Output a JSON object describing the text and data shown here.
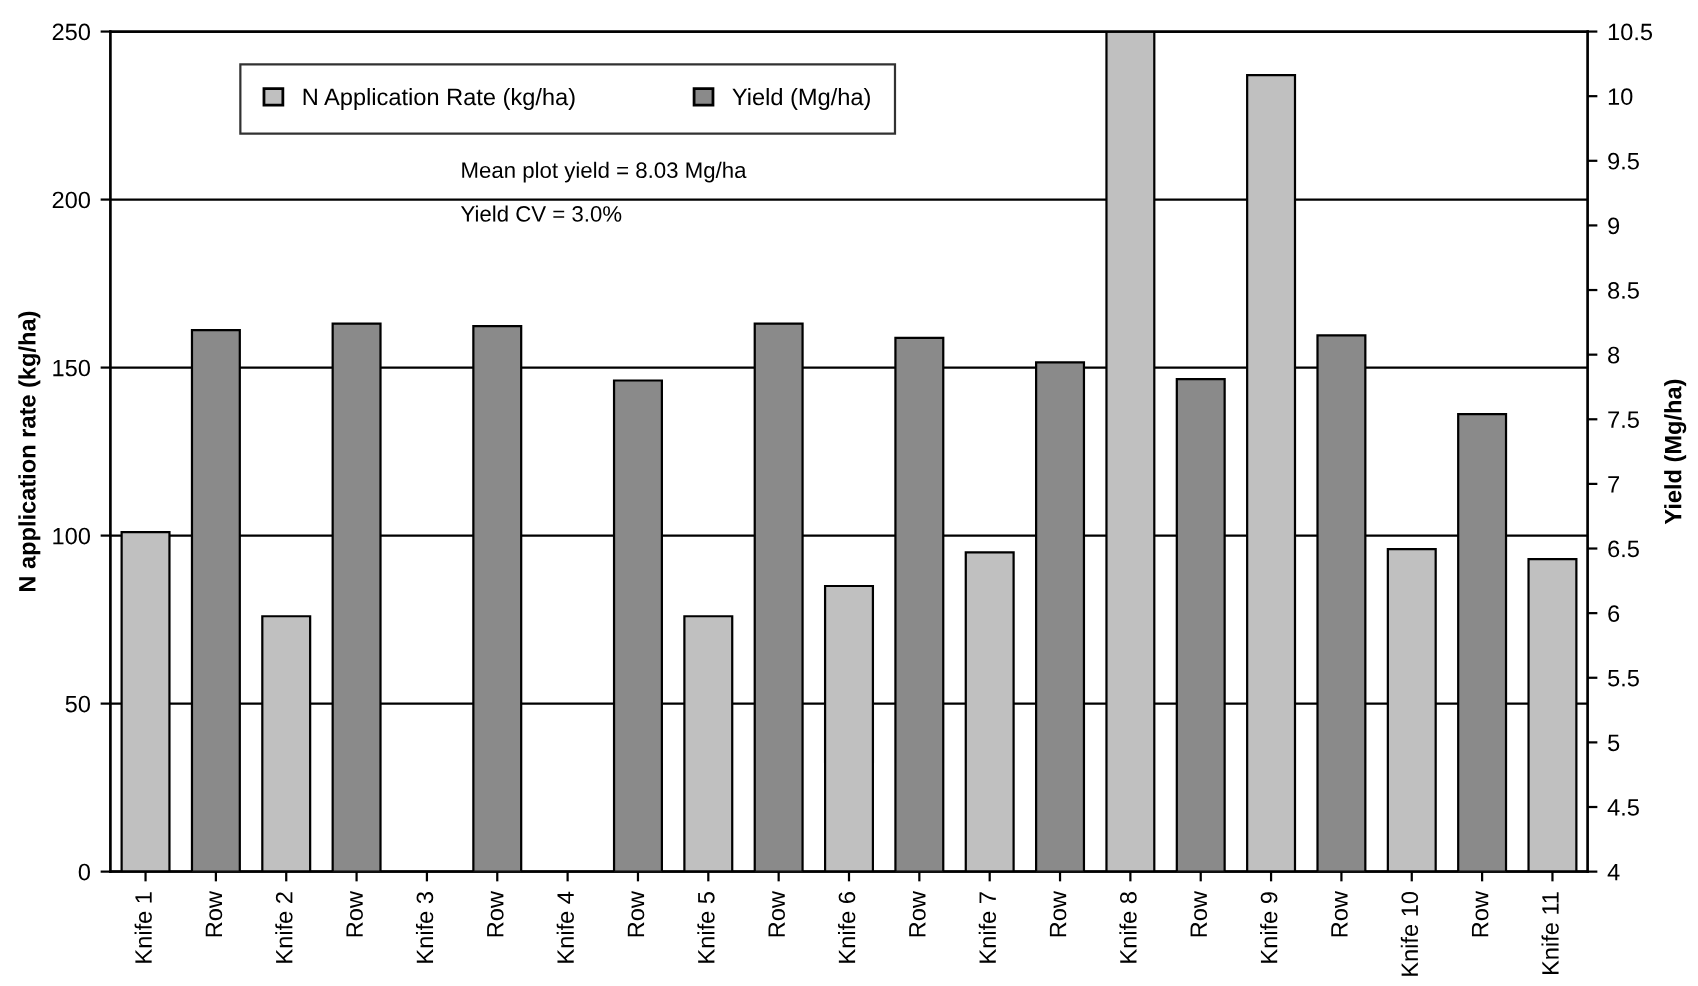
{
  "chart_data": {
    "type": "bar",
    "ylabel": "N application rate (kg/ha)",
    "y2label": "Yield (Mg/ha)",
    "categories": [
      "Knife 1",
      "Row",
      "Knife 2",
      "Row",
      "Knife 3",
      "Row",
      "Knife 4",
      "Row",
      "Knife 5",
      "Row",
      "Knife 6",
      "Row",
      "Knife 7",
      "Row",
      "Knife 8",
      "Row",
      "Knife 9",
      "Row",
      "Knife 10",
      "Row",
      "Knife 11"
    ],
    "series": [
      {
        "name": "N Application Rate (kg/ha)",
        "color": "#c0c0c0",
        "values": [
          101,
          null,
          76,
          null,
          null,
          null,
          null,
          null,
          76,
          null,
          85,
          null,
          95,
          null,
          250,
          null,
          237,
          null,
          96,
          null,
          93
        ]
      },
      {
        "name": "Yield (Mg/ha)",
        "color": "#8a8a8a",
        "axis": "y2",
        "values": [
          null,
          8.19,
          null,
          8.24,
          null,
          8.22,
          null,
          7.8,
          null,
          8.24,
          null,
          8.13,
          null,
          7.94,
          null,
          7.81,
          null,
          8.15,
          null,
          7.54,
          null
        ]
      }
    ],
    "ylim": [
      0,
      250
    ],
    "yticks": [
      0,
      50,
      100,
      150,
      200,
      250
    ],
    "y2lim": [
      4,
      10.5
    ],
    "y2ticks": [
      4,
      4.5,
      5,
      5.5,
      6,
      6.5,
      7,
      7.5,
      8,
      8.5,
      9,
      9.5,
      10,
      10.5
    ],
    "grid": "y",
    "legend": "top",
    "annotations": [
      "Mean plot yield = 8.03 Mg/ha",
      "Yield CV = 3.0%"
    ]
  }
}
